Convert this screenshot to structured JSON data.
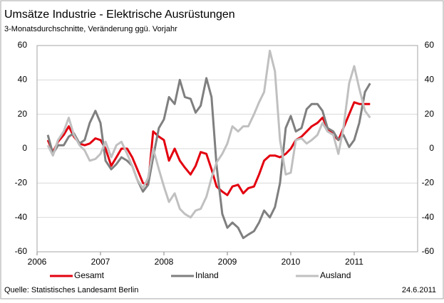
{
  "chart_data": {
    "type": "line",
    "title": "Umsätze Industrie - Elektrische Ausrüstungen",
    "subtitle": "3-Monatsdurchschnitte, Veränderung ggü. Vorjahr",
    "source": "Quelle: Statistisches Landesamt Berlin",
    "date": "24.6.2011",
    "x": [
      2006.17,
      2006.25,
      2006.33,
      2006.42,
      2006.5,
      2006.58,
      2006.67,
      2006.75,
      2006.83,
      2006.92,
      2007.0,
      2007.08,
      2007.17,
      2007.25,
      2007.33,
      2007.42,
      2007.5,
      2007.58,
      2007.67,
      2007.75,
      2007.83,
      2007.92,
      2008.0,
      2008.08,
      2008.17,
      2008.25,
      2008.33,
      2008.42,
      2008.5,
      2008.58,
      2008.67,
      2008.75,
      2008.83,
      2008.92,
      2009.0,
      2009.08,
      2009.17,
      2009.25,
      2009.33,
      2009.42,
      2009.5,
      2009.58,
      2009.67,
      2009.75,
      2009.83,
      2009.92,
      2010.0,
      2010.08,
      2010.17,
      2010.25,
      2010.33,
      2010.42,
      2010.5,
      2010.58,
      2010.67,
      2010.75,
      2010.83,
      2010.92,
      2011.0,
      2011.08,
      2011.17,
      2011.25
    ],
    "series": [
      {
        "name": "Gesamt",
        "color": "#e3000f",
        "values": [
          5,
          -2,
          4,
          8,
          13,
          7,
          3,
          2,
          3,
          6,
          5,
          0,
          -10,
          -5,
          0,
          0,
          -5,
          -12,
          -20,
          -21,
          10,
          7,
          5,
          -7,
          0,
          -7,
          -11,
          -15,
          -10,
          -2,
          -3,
          -12,
          -22,
          -25,
          -27,
          -22,
          -21,
          -26,
          -23,
          -22,
          -15,
          -7,
          -4,
          -4,
          -5,
          -3,
          0,
          5,
          7,
          10,
          13,
          15,
          18,
          12,
          8,
          5,
          12,
          20,
          27,
          26,
          26,
          26
        ]
      },
      {
        "name": "Inland",
        "color": "#7f7f7f",
        "values": [
          8,
          -3,
          2,
          2,
          7,
          9,
          3,
          5,
          15,
          22,
          15,
          -7,
          -12,
          -9,
          -5,
          -7,
          -10,
          -18,
          -25,
          -21,
          -5,
          12,
          17,
          30,
          26,
          40,
          30,
          29,
          21,
          25,
          41,
          30,
          -10,
          -38,
          -46,
          -43,
          -46,
          -52,
          -50,
          -48,
          -43,
          -36,
          -40,
          -34,
          -20,
          12,
          19,
          10,
          12,
          23,
          26,
          26,
          22,
          12,
          10,
          5,
          8,
          1,
          5,
          15,
          33,
          38
        ]
      },
      {
        "name": "Ausland",
        "color": "#c0c0c0",
        "values": [
          2,
          -4,
          5,
          10,
          18,
          8,
          2,
          -1,
          -7,
          -6,
          -3,
          4,
          -5,
          2,
          4,
          -3,
          -10,
          -18,
          -23,
          -17,
          0,
          -12,
          -22,
          -31,
          -26,
          -35,
          -38,
          -40,
          -36,
          -35,
          -28,
          -17,
          -8,
          -3,
          3,
          13,
          10,
          13,
          13,
          20,
          27,
          33,
          57,
          45,
          5,
          -15,
          -14,
          5,
          6,
          3,
          5,
          8,
          15,
          10,
          8,
          -3,
          12,
          38,
          48,
          35,
          22,
          18
        ]
      }
    ],
    "xlim": [
      2006,
      2012
    ],
    "xticks": [
      2006,
      2007,
      2008,
      2009,
      2010,
      2011
    ],
    "ylim": [
      -60,
      60
    ],
    "yticks": [
      -60,
      -40,
      -20,
      0,
      20,
      40,
      60
    ],
    "y2lim": [
      -60,
      60
    ],
    "y2ticks": [
      -60,
      -40,
      -20,
      0,
      20,
      40,
      60
    ],
    "grid": true,
    "legend": "bottom"
  }
}
